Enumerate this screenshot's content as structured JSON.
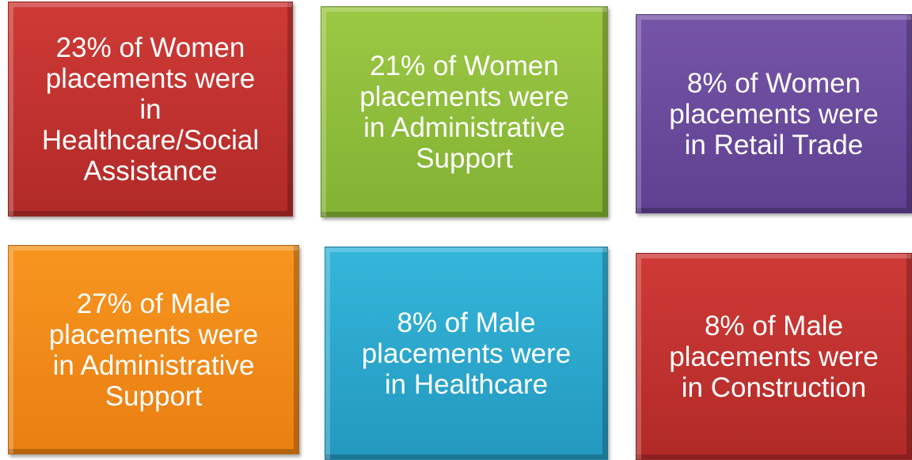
{
  "boxes": [
    {
      "lines": [
        "23% of Women",
        "placements were",
        "in",
        "Healthcare/Social",
        "Assistance"
      ]
    },
    {
      "lines": [
        "21% of Women",
        "placements were",
        "in Administrative",
        "Support"
      ]
    },
    {
      "lines": [
        "8% of Women",
        "placements were",
        "in Retail Trade"
      ]
    },
    {
      "lines": [
        "27% of Male",
        "placements were",
        "in Administrative",
        "Support"
      ]
    },
    {
      "lines": [
        "8% of Male",
        "placements were",
        "in Healthcare"
      ]
    },
    {
      "lines": [
        "8% of Male",
        "placements were",
        "in Construction"
      ]
    }
  ]
}
